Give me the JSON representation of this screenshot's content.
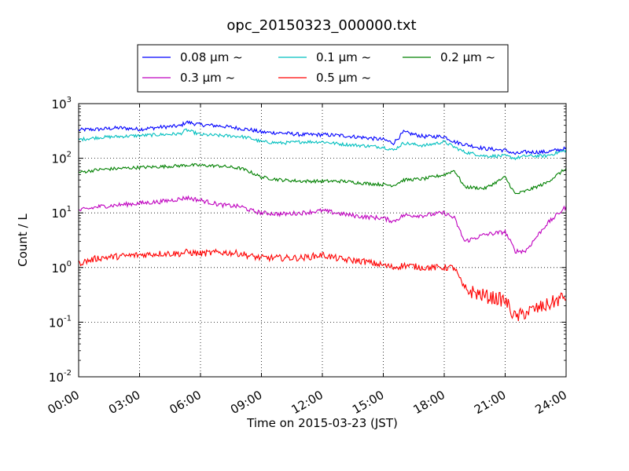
{
  "chart_data": {
    "type": "line",
    "title": "opc_20150323_000000.txt",
    "xlabel": "Time on 2015-03-23 (JST)",
    "ylabel": "Count / L",
    "yscale": "log",
    "ylim": [
      0.01,
      1000
    ],
    "xlim": [
      0,
      24
    ],
    "grid": true,
    "legend_placement": "top-center",
    "x_ticks": [
      {
        "value": 0,
        "label": "00:00"
      },
      {
        "value": 3,
        "label": "03:00"
      },
      {
        "value": 6,
        "label": "06:00"
      },
      {
        "value": 9,
        "label": "09:00"
      },
      {
        "value": 12,
        "label": "12:00"
      },
      {
        "value": 15,
        "label": "15:00"
      },
      {
        "value": 18,
        "label": "18:00"
      },
      {
        "value": 21,
        "label": "21:00"
      },
      {
        "value": 24,
        "label": "24:00"
      }
    ],
    "y_ticks": [
      {
        "value": 0.01,
        "base": "10",
        "exp": "-2"
      },
      {
        "value": 0.1,
        "base": "10",
        "exp": "-1"
      },
      {
        "value": 1,
        "base": "10",
        "exp": "0"
      },
      {
        "value": 10,
        "base": "10",
        "exp": "1"
      },
      {
        "value": 100,
        "base": "10",
        "exp": "2"
      },
      {
        "value": 1000,
        "base": "10",
        "exp": "3"
      }
    ],
    "x": [
      0,
      1,
      2,
      3,
      4,
      5,
      5.3,
      6,
      7,
      8,
      8.5,
      9,
      10,
      11,
      12,
      13,
      14,
      15,
      15.5,
      16,
      17,
      18,
      18.5,
      19,
      20,
      21,
      21.5,
      22,
      23,
      24
    ],
    "series": [
      {
        "name": "0.08 μm ~",
        "color": "#0000ff",
        "values": [
          330,
          340,
          360,
          340,
          370,
          390,
          460,
          410,
          390,
          350,
          330,
          300,
          290,
          270,
          270,
          260,
          240,
          220,
          190,
          300,
          250,
          250,
          200,
          180,
          150,
          140,
          120,
          130,
          130,
          150
        ]
      },
      {
        "name": "0.1 μm ~",
        "color": "#00bfbf",
        "values": [
          220,
          240,
          250,
          260,
          270,
          280,
          330,
          270,
          260,
          250,
          230,
          200,
          190,
          200,
          200,
          180,
          170,
          160,
          140,
          190,
          170,
          200,
          160,
          130,
          110,
          110,
          100,
          110,
          110,
          140
        ]
      },
      {
        "name": "0.2 μm ~",
        "color": "#008000",
        "values": [
          55,
          62,
          65,
          68,
          70,
          73,
          75,
          74,
          72,
          65,
          55,
          45,
          40,
          38,
          38,
          38,
          35,
          33,
          32,
          40,
          42,
          50,
          60,
          30,
          28,
          45,
          22,
          25,
          35,
          65
        ]
      },
      {
        "name": "0.3 μm ~",
        "color": "#bf00bf",
        "values": [
          11,
          13,
          14,
          15,
          16,
          18,
          19,
          17,
          14,
          13,
          11,
          10,
          9.5,
          10,
          11,
          9.5,
          8.5,
          8,
          7,
          9,
          9,
          10,
          8,
          3,
          4,
          4.5,
          2,
          2,
          6,
          13
        ]
      },
      {
        "name": "0.5 μm ~",
        "color": "#ff0000",
        "values": [
          1.2,
          1.5,
          1.6,
          1.7,
          1.8,
          1.8,
          1.9,
          1.8,
          1.9,
          1.8,
          1.6,
          1.5,
          1.5,
          1.5,
          1.7,
          1.4,
          1.3,
          1.1,
          1.0,
          1.1,
          1.0,
          1.0,
          1.0,
          0.4,
          0.3,
          0.25,
          0.12,
          0.15,
          0.2,
          0.3
        ]
      }
    ]
  }
}
